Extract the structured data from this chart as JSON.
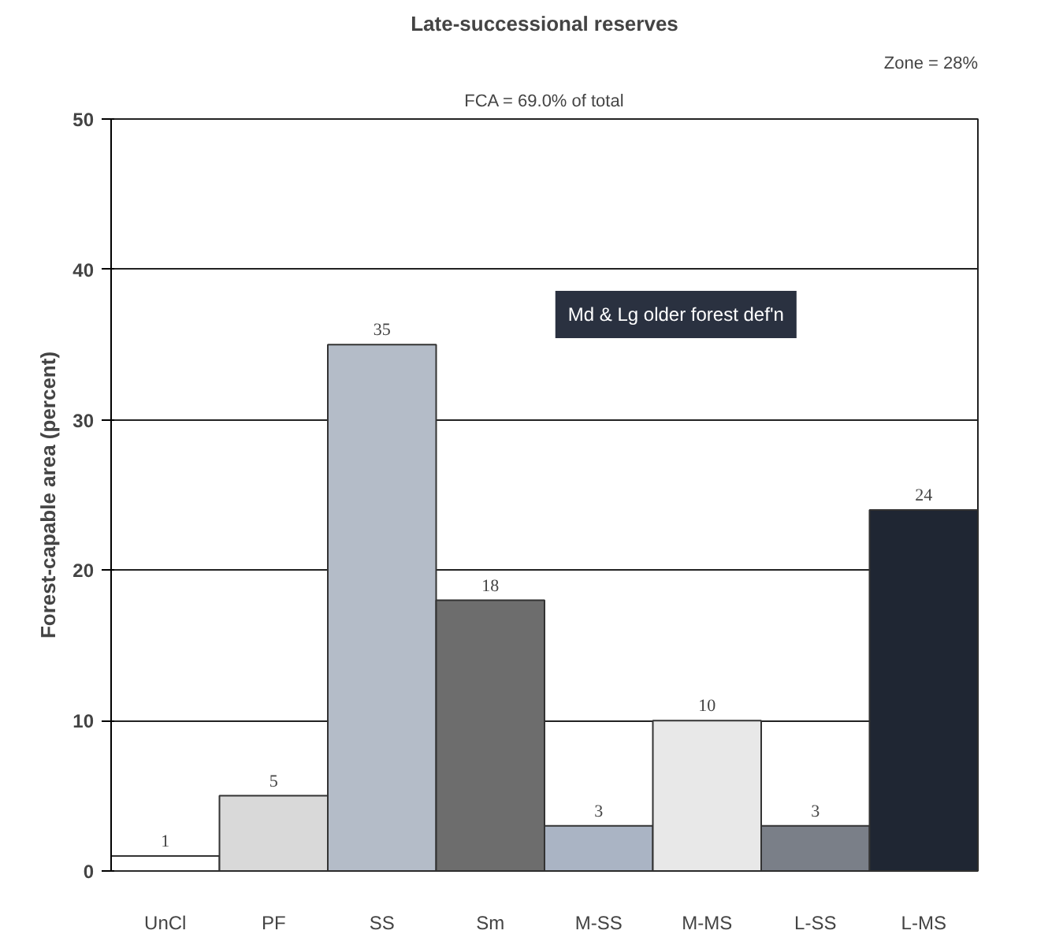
{
  "chart_data": {
    "type": "bar",
    "title": "Late-successional reserves",
    "subtitle": "FCA = 69.0% of total",
    "ylabel": "Forest-capable area (percent)",
    "categories": [
      "UnCl",
      "PF",
      "SS",
      "Sm",
      "M-SS",
      "M-MS",
      "L-SS",
      "L-MS"
    ],
    "values": [
      1,
      5,
      35,
      18,
      3,
      10,
      3,
      24
    ],
    "colors": [
      "#ffffff",
      "#d9d9d9",
      "#b4bcc8",
      "#6d6d6d",
      "#aab4c4",
      "#e8e8e8",
      "#7a7f88",
      "#1f2633"
    ],
    "ylim": [
      0,
      50
    ],
    "yticks": [
      0,
      10,
      20,
      30,
      40,
      50
    ],
    "grid": "y",
    "data_labels": true,
    "annotations": [
      "Zone = 28%",
      "Md & Lg older forest def'n"
    ]
  }
}
